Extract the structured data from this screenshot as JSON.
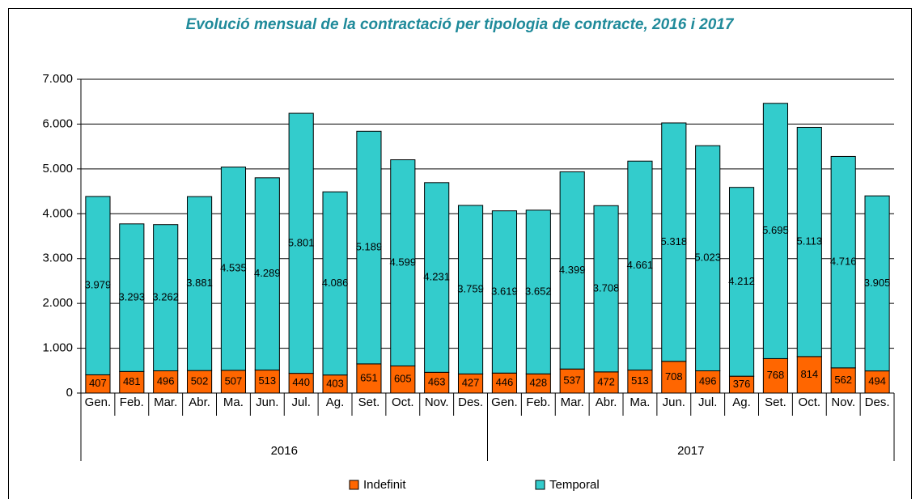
{
  "chart_data": {
    "type": "stacked_bar",
    "title": "Evolució mensual de la contractació per tipologia de contracte, 2016 i 2017",
    "categories": [
      "Gen.",
      "Feb.",
      "Mar.",
      "Abr.",
      "Ma.",
      "Jun.",
      "Jul.",
      "Ag.",
      "Set.",
      "Oct.",
      "Nov.",
      "Des.",
      "Gen.",
      "Feb.",
      "Mar.",
      "Abr.",
      "Ma.",
      "Jun.",
      "Jul.",
      "Ag.",
      "Set.",
      "Oct.",
      "Nov.",
      "Des."
    ],
    "groups": [
      "2016",
      "2017"
    ],
    "series": [
      {
        "name": "Indefinit",
        "color": "#ff6600",
        "values": [
          407,
          481,
          496,
          502,
          507,
          513,
          440,
          403,
          651,
          605,
          463,
          427,
          446,
          428,
          537,
          472,
          513,
          708,
          496,
          376,
          768,
          814,
          562,
          494
        ]
      },
      {
        "name": "Temporal",
        "color": "#33cccc",
        "values": [
          3979,
          3293,
          3262,
          3881,
          4535,
          4289,
          5801,
          4086,
          5189,
          4599,
          4231,
          3759,
          3619,
          3652,
          4399,
          3708,
          4661,
          5318,
          5023,
          4212,
          5695,
          5113,
          4716,
          3905
        ],
        "value_labels": [
          "3.979",
          "3.293",
          "3.262",
          "3.881",
          "4.535",
          "4.289",
          "5.801",
          "4.086",
          "5.189",
          "4.599",
          "4.231",
          "3.759",
          "3.619",
          "3.652",
          "4.399",
          "3.708",
          "4.661",
          "5.318",
          "5.023",
          "4.212",
          "5.695",
          "5.113",
          "4.716",
          "3.905"
        ]
      }
    ],
    "ylim": [
      0,
      7000
    ],
    "yticks": [
      0,
      {
        "value": 1000,
        "label": "1.000"
      },
      {
        "value": 2000,
        "label": "2.000"
      },
      {
        "value": 3000,
        "label": "3.000"
      },
      {
        "value": 4000,
        "label": "4.000"
      },
      {
        "value": 5000,
        "label": "5.000"
      },
      {
        "value": 6000,
        "label": "6.000"
      },
      {
        "value": 7000,
        "label": "7.000"
      }
    ],
    "grid": true,
    "legend": "bottom"
  }
}
